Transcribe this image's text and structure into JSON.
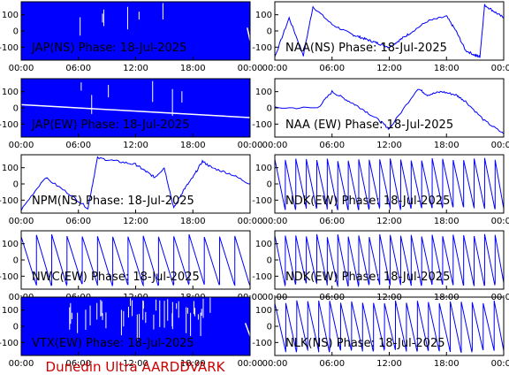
{
  "footer": "Dunedin Ultra AARDDVARK",
  "colors": {
    "trace": "#0000ff",
    "frame": "#000000",
    "footer": "#cc0000"
  },
  "chart_data": [
    {
      "type": "line",
      "title": "JAP(NS) Phase: 18-Jul-2025",
      "ylim": [
        -180,
        180
      ],
      "yticks": [
        "100",
        "0",
        "-100"
      ],
      "xticks": [
        "00:00",
        "06:00",
        "12:00",
        "18:00",
        "00:00"
      ],
      "style": "noise",
      "series": [
        {
          "x": [
            0,
            23.7,
            24
          ],
          "values": [
            0,
            0,
            0
          ]
        }
      ]
    },
    {
      "type": "line",
      "title": "NAA(NS) Phase: 18-Jul-2025",
      "ylim": [
        -180,
        180
      ],
      "yticks": [
        "100",
        "0",
        "-100"
      ],
      "xticks": [
        "00:00",
        "06:00",
        "12:00",
        "18:00",
        "00:00"
      ],
      "style": "trace",
      "series": [
        {
          "x": [
            0,
            1.5,
            3,
            4,
            6,
            8,
            9,
            10,
            11,
            12,
            13,
            14,
            16,
            18,
            19,
            20,
            21,
            21.5,
            22,
            23,
            24
          ],
          "values": [
            -160,
            80,
            -150,
            150,
            40,
            -20,
            -40,
            -60,
            -80,
            -100,
            -60,
            -20,
            60,
            90,
            0,
            -120,
            -150,
            -160,
            160,
            120,
            80
          ]
        }
      ]
    },
    {
      "type": "line",
      "title": "JAP(EW) Phase: 18-Jul-2025",
      "ylim": [
        -180,
        180
      ],
      "yticks": [
        "100",
        "0",
        "-100"
      ],
      "xticks": [
        "00:00",
        "06:00",
        "12:00",
        "18:00",
        "00:00"
      ],
      "style": "noise",
      "series": [
        {
          "x": [
            0,
            24
          ],
          "values": [
            0,
            0
          ]
        }
      ]
    },
    {
      "type": "line",
      "title": "NAA (EW) Phase: 18-Jul-2025",
      "ylim": [
        -180,
        180
      ],
      "yticks": [
        "100",
        "0",
        "-100"
      ],
      "xticks": [
        "00:00",
        "06:00",
        "12:00",
        "18:00",
        "00:00"
      ],
      "style": "trace",
      "series": [
        {
          "x": [
            0,
            4.5,
            6,
            7.5,
            9,
            11,
            12,
            15,
            16,
            17.5,
            19,
            20,
            22,
            24
          ],
          "values": [
            0,
            0,
            100,
            50,
            0,
            -80,
            -130,
            120,
            80,
            100,
            80,
            40,
            -80,
            -160
          ]
        }
      ]
    },
    {
      "type": "line",
      "title": "NPM(NS) Phase: 18-Jul-2025",
      "ylim": [
        -180,
        180
      ],
      "yticks": [
        "100",
        "0",
        "-100"
      ],
      "xticks": [
        "00:00",
        "06:00",
        "12:00",
        "18:00",
        "00:00"
      ],
      "style": "trace",
      "series": [
        {
          "x": [
            0,
            2.5,
            5,
            7,
            8,
            10,
            12,
            13,
            14,
            15,
            16,
            17,
            18,
            19,
            20,
            22,
            24
          ],
          "values": [
            -160,
            40,
            -60,
            -150,
            160,
            140,
            120,
            80,
            40,
            100,
            -150,
            -40,
            40,
            140,
            100,
            60,
            0
          ]
        }
      ]
    },
    {
      "type": "line",
      "title": "NDK(EW) Phase: 18-Jul-2025",
      "ylim": [
        -180,
        180
      ],
      "yticks": [
        "100",
        "0",
        "-100"
      ],
      "xticks": [
        "00:00",
        "06:00",
        "12:00",
        "18:00",
        "00:00"
      ],
      "style": "sawtooth",
      "series": [
        {
          "x": [
            0,
            24
          ],
          "values": [
            160,
            -160
          ]
        }
      ]
    },
    {
      "type": "line",
      "title": "NWC(EW) Phase: 18-Jul-2025",
      "ylim": [
        -180,
        180
      ],
      "yticks": [
        "100",
        "0",
        "-100"
      ],
      "xticks": [
        "00:00",
        "06:00",
        "12:00",
        "18:00",
        "00:00"
      ],
      "style": "sawtooth",
      "series": [
        {
          "x": [
            0,
            24
          ],
          "values": [
            160,
            -160
          ]
        }
      ]
    },
    {
      "type": "line",
      "title": "NDK(EW) Phase: 18-Jul-2025",
      "ylim": [
        -180,
        180
      ],
      "yticks": [
        "100",
        "0",
        "-100"
      ],
      "xticks": [
        "00:00",
        "06:00",
        "12:00",
        "18:00",
        "00:00"
      ],
      "style": "sawtooth",
      "series": [
        {
          "x": [
            0,
            24
          ],
          "values": [
            160,
            -160
          ]
        }
      ]
    },
    {
      "type": "line",
      "title": "VTX(EW) Phase: 18-Jul-2025",
      "ylim": [
        -180,
        180
      ],
      "yticks": [
        "100",
        "0",
        "-100"
      ],
      "xticks": [
        "00:00",
        "06:00",
        "12:00",
        "18:00",
        "00:00"
      ],
      "style": "noise",
      "series": [
        {
          "x": [
            0,
            23.5,
            24
          ],
          "values": [
            0,
            0,
            0
          ]
        }
      ]
    },
    {
      "type": "line",
      "title": "NLK(NS) Phase: 18-Jul-2025",
      "ylim": [
        -180,
        180
      ],
      "yticks": [
        "100",
        "0",
        "-100"
      ],
      "xticks": [
        "00:00",
        "06:00",
        "12:00",
        "18:00",
        "00:00"
      ],
      "style": "sawtooth",
      "series": [
        {
          "x": [
            0,
            24
          ],
          "values": [
            160,
            -160
          ]
        }
      ]
    }
  ]
}
